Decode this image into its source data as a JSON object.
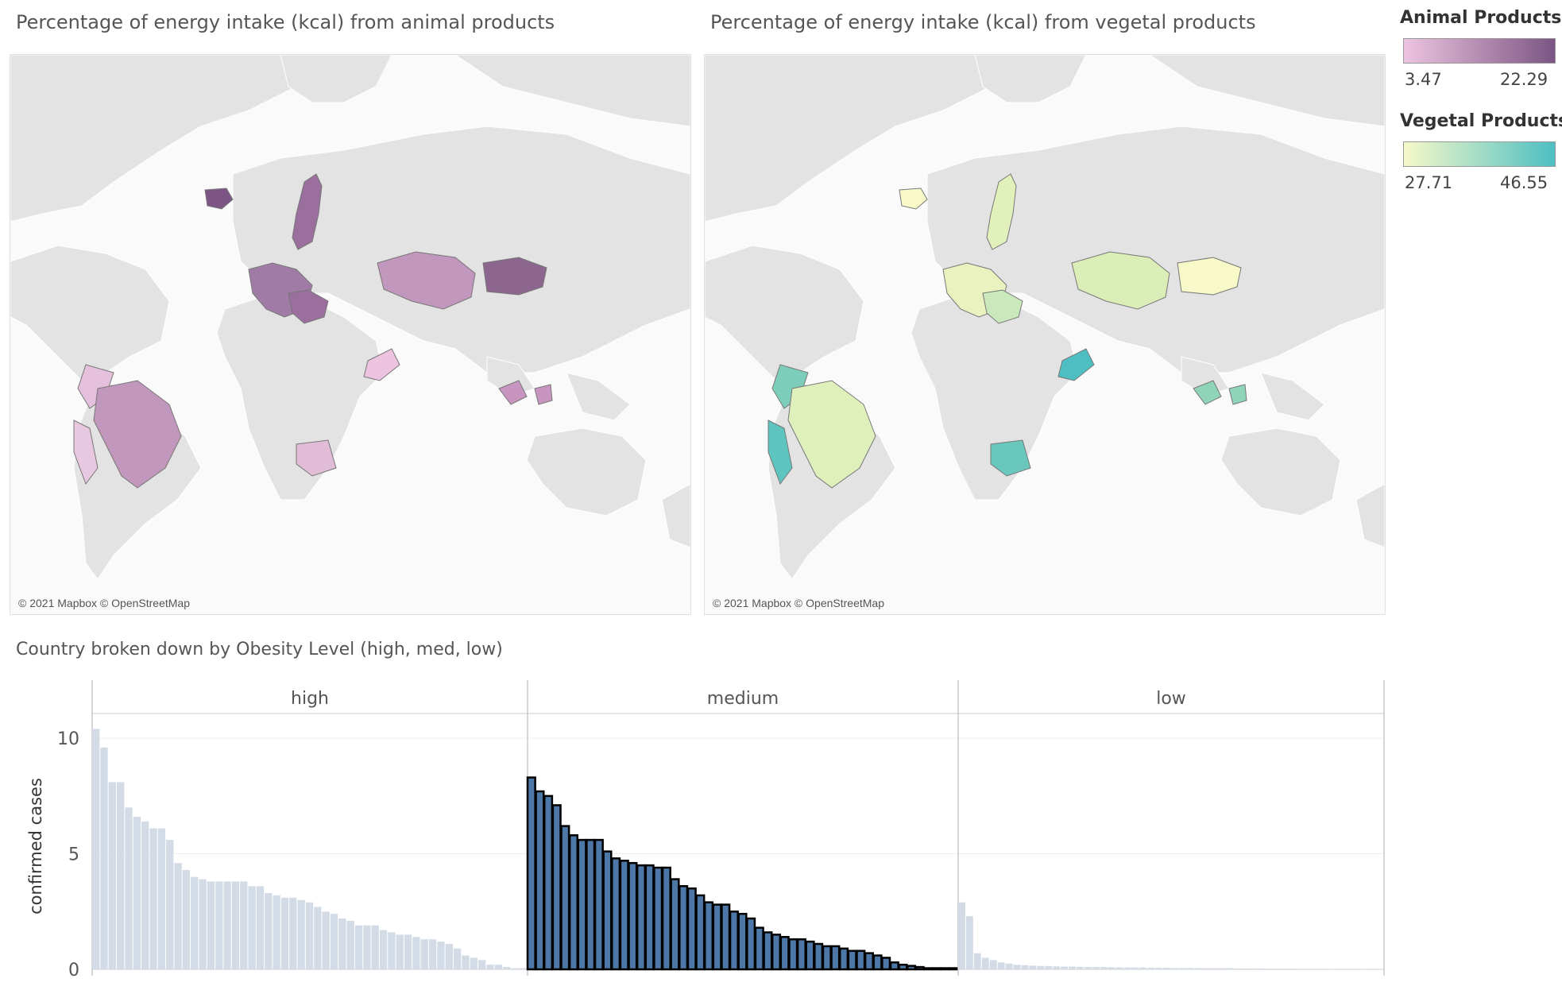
{
  "maps": {
    "animal": {
      "title": "Percentage of energy intake (kcal) from animal products",
      "attribution": "© 2021 Mapbox © OpenStreetMap"
    },
    "vegetal": {
      "title": "Percentage of energy intake (kcal) from vegetal products",
      "attribution": "© 2021 Mapbox © OpenStreetMap"
    }
  },
  "legend": {
    "animal": {
      "title": "Animal Products",
      "min": "3.47",
      "max": "22.29",
      "color_low": "#ecc4e0",
      "color_high": "#7c5584"
    },
    "vegetal": {
      "title": "Vegetal Products",
      "min": "27.71",
      "max": "46.55",
      "color_low": "#f7f9c8",
      "color_high": "#4dbfc3"
    }
  },
  "chart_data": {
    "type": "bar",
    "title": "Country broken down by Obesity Level (high, med, low)",
    "ylabel": "confirmed cases",
    "ylim": [
      0,
      11
    ],
    "yticks": [
      "0",
      "5",
      "10"
    ],
    "panels": [
      {
        "name": "high",
        "values": [
          10.4,
          9.6,
          8.1,
          8.1,
          7.0,
          6.6,
          6.4,
          6.1,
          6.1,
          5.6,
          4.6,
          4.3,
          4.0,
          3.9,
          3.8,
          3.8,
          3.8,
          3.8,
          3.8,
          3.6,
          3.6,
          3.3,
          3.2,
          3.1,
          3.1,
          3.0,
          2.9,
          2.7,
          2.5,
          2.4,
          2.2,
          2.1,
          1.9,
          1.9,
          1.9,
          1.7,
          1.6,
          1.5,
          1.5,
          1.4,
          1.3,
          1.3,
          1.2,
          1.1,
          0.9,
          0.6,
          0.5,
          0.4,
          0.2,
          0.2,
          0.1,
          0.05,
          0.05
        ],
        "color": "#d3dce6",
        "highlighted": false
      },
      {
        "name": "medium",
        "values": [
          8.3,
          7.7,
          7.5,
          7.1,
          6.2,
          5.8,
          5.6,
          5.6,
          5.6,
          5.1,
          4.8,
          4.7,
          4.6,
          4.5,
          4.5,
          4.4,
          4.4,
          3.9,
          3.6,
          3.5,
          3.2,
          2.9,
          2.8,
          2.8,
          2.5,
          2.4,
          2.2,
          1.8,
          1.6,
          1.5,
          1.4,
          1.3,
          1.3,
          1.2,
          1.1,
          1.0,
          1.0,
          0.9,
          0.8,
          0.8,
          0.7,
          0.6,
          0.5,
          0.3,
          0.2,
          0.15,
          0.1,
          0.05,
          0.05,
          0.05,
          0.05
        ],
        "color": "#4d77a6",
        "highlighted": true
      },
      {
        "name": "low",
        "values": [
          2.9,
          2.3,
          0.7,
          0.5,
          0.4,
          0.3,
          0.25,
          0.2,
          0.18,
          0.16,
          0.15,
          0.14,
          0.13,
          0.12,
          0.12,
          0.11,
          0.1,
          0.1,
          0.1,
          0.09,
          0.09,
          0.08,
          0.08,
          0.08,
          0.07,
          0.07,
          0.07,
          0.06,
          0.06,
          0.06,
          0.05,
          0.05,
          0.05,
          0.05,
          0.05,
          0.04,
          0.04,
          0.04,
          0.04,
          0.03,
          0.03,
          0.03,
          0.03,
          0.02,
          0.02,
          0.02,
          0.02,
          0.01,
          0.01,
          0.01,
          0.01,
          0.01,
          0.01,
          0.01
        ],
        "color": "#d3dce6",
        "highlighted": false
      }
    ]
  }
}
